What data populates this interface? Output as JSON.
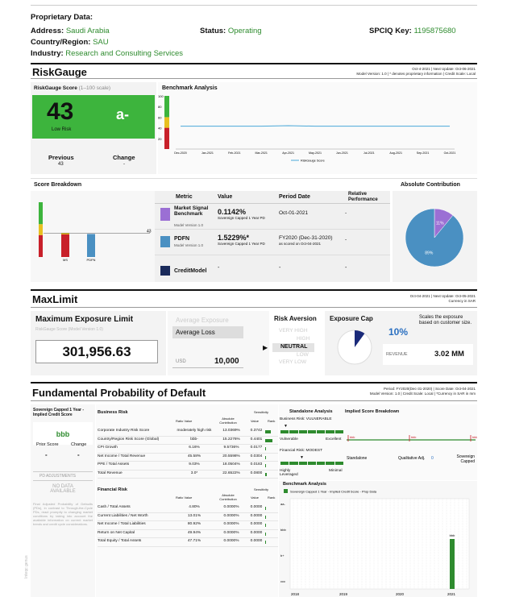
{
  "header": {
    "title": "Proprietary Data:",
    "address_label": "Address:",
    "address": "Saudi Arabia",
    "status_label": "Status:",
    "status": "Operating",
    "spciq_label": "SPCIQ Key:",
    "spciq": "1195875680",
    "country_label": "Country/Region:",
    "country": "SAU",
    "industry_label": "Industry:",
    "industry": "Research and Consulting Services"
  },
  "riskgauge": {
    "title": "RiskGauge",
    "meta_line1": "Oct-4-2021 | Next Update: Oct-06-2021",
    "meta_line2": "Model Version: 1.0 | * denotes proprietary information | Credit Scale: Local",
    "score_header": "RiskGauge Score",
    "score_scale": "(1–100 scale)",
    "score": "43",
    "score_label": "Low Risk",
    "grade": "a-",
    "previous_label": "Previous",
    "previous_value": "43",
    "change_label": "Change",
    "change_value": "-",
    "benchmark_title": "Benchmark Analysis",
    "benchmark_legend": "RiskGauge Score",
    "benchmark_xticks": [
      "Dec-2020",
      "Jan-2021",
      "Feb-2021",
      "Mar-2021",
      "Apr-2021",
      "May-2021",
      "Jun-2021",
      "Jul-2021",
      "Aug-2021",
      "Sep-2021",
      "Oct-2021"
    ],
    "benchmark_yticks": [
      "100",
      "80",
      "60",
      "40",
      "20"
    ],
    "breakdown_title": "Score Breakdown",
    "breakdown_marker": "43",
    "breakdown_xlabels": [
      "MS",
      "PDFN"
    ],
    "abs_title": "Absolute Contribution",
    "pie_labels": [
      "11%",
      "89%"
    ],
    "table_headers": [
      "Metric",
      "Value",
      "Period Date",
      "Relative Performance"
    ],
    "rows": [
      {
        "metric": "Market Signal Benchmark",
        "model": "Model Version 1.0",
        "value": "0.1142%",
        "value_sub": "Sovereign Capped 1 Year PD",
        "period": "Oct-01-2021",
        "period_sub": "",
        "rel": "-"
      },
      {
        "metric": "PDFN",
        "model": "Model Version 1.0",
        "value": "1.5229%*",
        "value_sub": "Sovereign Capped 1 Year PD",
        "period": "FY2020 (Dec-31-2020)",
        "period_sub": "as scored on Oct-04-2021",
        "rel": "-"
      },
      {
        "metric": "CreditModel",
        "model": "",
        "value": "-",
        "value_sub": "",
        "period": "-",
        "period_sub": "",
        "rel": "-"
      }
    ]
  },
  "maxlimit": {
    "title": "MaxLimit",
    "meta_line1": "Oct-04-2021 | Next Update: Oct-05-2021",
    "meta_line2": "Currency in SAR",
    "mel_title": "Maximum Exposure Limit",
    "mel_sub": "RiskGauge Score (Model Version 1.0)",
    "mel_value": "301,956.63",
    "avg_exposure": "Average Exposure",
    "avg_loss": "Average Loss",
    "usd": "USD",
    "usd_value": "10,000",
    "risk_aversion": "Risk Aversion",
    "aversion_levels": [
      "VERY HIGH",
      "HIGH",
      "NEUTRAL",
      "LOW",
      "VERY LOW"
    ],
    "exposure_cap": "Exposure Cap",
    "cap_pct": "10%",
    "cap_note": "Scales the exposure based on customer size.",
    "revenue_label": "REVENUE",
    "revenue_value": "3.02 MM"
  },
  "fpd": {
    "title": "Fundamental Probability of Default",
    "meta_line1": "Period: FY2020(Dec-31-2020) | Score Date: Oct-04-2021",
    "meta_line2": "Model Version: 1.0 | Credit Scale: Local | *Currency in SAR in mm",
    "left_title": "Sovereign Capped 1 Year - Implied Credit Score",
    "grade": "bbb",
    "prior_label": "Prior Score",
    "prior_value": "-",
    "change_label": "Change",
    "change_value": "-",
    "pd_adj": "PD ADJUSTMENTS",
    "no_data": "NO DATA AVAILABLE",
    "disclaimer": "Final Adjusted Probability of Defaults (PDs), in contrast to Through-the-Cycle PDs, react promptly to changing market conditions by taking into account the available information on current market trends and credit cycle considerations.",
    "business_risk": "Business Risk",
    "financial_risk": "Financial Risk",
    "col_ratio": "Ratio Value",
    "col_abs": "Absolute Contribution",
    "col_value": "Value",
    "col_rank": "Rank",
    "col_sens": "Sensitivity",
    "business_rows": [
      {
        "name": "Corporate Industry Risk Score",
        "ratio": "moderately high risk",
        "abs": "13.0369%",
        "val": "0.3742"
      },
      {
        "name": "Country/Region Risk Score (Global)",
        "ratio": "bbb-",
        "abs": "15.2276%",
        "val": "0.4401"
      },
      {
        "name": "CPI Growth",
        "ratio": "6.16%",
        "abs": "9.5736%",
        "val": "0.0177"
      },
      {
        "name": "Net Income / Total Revenue",
        "ratio": "45.58%",
        "abs": "20.5598%",
        "val": "0.0304"
      },
      {
        "name": "PPE / Total Assets",
        "ratio": "9.03%",
        "abs": "18.0504%",
        "val": "0.0183"
      },
      {
        "name": "Total Revenue",
        "ratio": "3.0*",
        "abs": "22.6522%",
        "val": "0.0800"
      }
    ],
    "financial_rows": [
      {
        "name": "Cash / Total Assets",
        "ratio": "4.80%",
        "abs": "0.0000%",
        "val": "0.0000"
      },
      {
        "name": "Current Liabilities / Net Worth",
        "ratio": "13.01%",
        "abs": "0.0000%",
        "val": "0.0000"
      },
      {
        "name": "Net Income / Total Liabilities",
        "ratio": "80.92%",
        "abs": "0.0000%",
        "val": "0.0000"
      },
      {
        "name": "Return on Net Capital",
        "ratio": "49.94%",
        "abs": "0.0000%",
        "val": "0.0000"
      },
      {
        "name": "Total Equity / Total Assets",
        "ratio": "47.71%",
        "abs": "0.0000%",
        "val": "0.0000"
      }
    ],
    "standalone_title": "Standalone Analysis",
    "implied_title": "Implied Score Breakdown",
    "business_vuln": "Business Risk: VULNERABLE",
    "vulnerable": "Vulnerable",
    "excellent": "Excellent",
    "financial_modest": "Financial Risk: MODEST",
    "highly_leveraged": "Highly Leveraged",
    "minimal": "Minimal",
    "isb_labels": [
      "Standalone",
      "Qualitative Adj.",
      "Sovereign Capped"
    ],
    "isb_tick_labels": [
      "bbb",
      "bbb",
      "bbb"
    ],
    "isb_adj": "0",
    "benchmark_title": "Benchmark Analysis",
    "benchmark_legend": "Sovereign Capped 1 Year - Implied Credit Score - Prop Data",
    "bench_y": [
      "aa-",
      "bbb",
      "b+",
      "ccc"
    ],
    "bench_x": [
      "2018",
      "2019",
      "2020",
      "2021"
    ],
    "bench_bar_label": "bbb",
    "watermark": "Inteqc genus"
  },
  "chart_data": [
    {
      "type": "line",
      "title": "Benchmark Analysis",
      "x": [
        "Dec-2020",
        "Jan-2021",
        "Feb-2021",
        "Mar-2021",
        "Apr-2021",
        "May-2021",
        "Jun-2021",
        "Jul-2021",
        "Aug-2021",
        "Sep-2021",
        "Oct-2021"
      ],
      "series": [
        {
          "name": "RiskGauge Score",
          "values": [
            43,
            43,
            43,
            43,
            44,
            43,
            43,
            43,
            43,
            43,
            43
          ]
        }
      ],
      "ylim": [
        0,
        100
      ]
    },
    {
      "type": "bar",
      "title": "Score Breakdown",
      "categories": [
        "MS",
        "PDFN"
      ],
      "values": [
        40,
        42
      ]
    },
    {
      "type": "pie",
      "title": "Absolute Contribution",
      "categories": [
        "Market Signal Benchmark",
        "PDFN"
      ],
      "values": [
        11,
        89
      ],
      "colors": [
        "#9b6fd4",
        "#4a90c2"
      ]
    },
    {
      "type": "bar",
      "title": "Benchmark Analysis",
      "categories": [
        "2018",
        "2019",
        "2020",
        "2021"
      ],
      "series": [
        {
          "name": "Sovereign Capped 1 Year - Implied Credit Score - Prop Data",
          "values": [
            null,
            null,
            null,
            "bbb"
          ]
        }
      ]
    }
  ]
}
